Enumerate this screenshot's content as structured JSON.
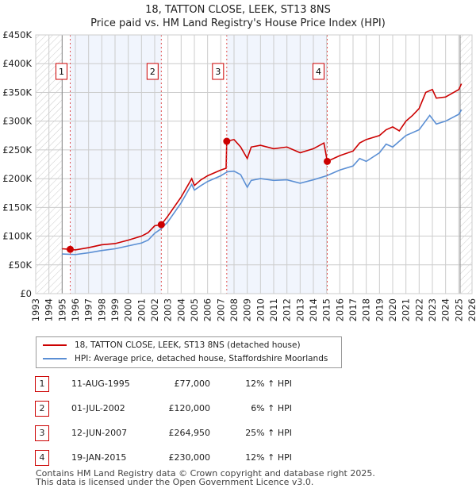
{
  "chart_data": {
    "type": "line",
    "title": "18, TATTON CLOSE, LEEK, ST13 8NS",
    "subtitle": "Price paid vs. HM Land Registry's House Price Index (HPI)",
    "xlim": [
      1993,
      2026
    ],
    "ylim": [
      0,
      450000
    ],
    "yticks": [
      "£0",
      "£50K",
      "£100K",
      "£150K",
      "£200K",
      "£250K",
      "£300K",
      "£350K",
      "£400K",
      "£450K"
    ],
    "xticks": [
      "1993",
      "1994",
      "1995",
      "1996",
      "1997",
      "1998",
      "1999",
      "2000",
      "2001",
      "2002",
      "2003",
      "2004",
      "2005",
      "2006",
      "2007",
      "2008",
      "2009",
      "2010",
      "2011",
      "2012",
      "2013",
      "2014",
      "2015",
      "2016",
      "2017",
      "2018",
      "2019",
      "2020",
      "2021",
      "2022",
      "2023",
      "2024",
      "2025",
      "2026"
    ],
    "grid": true,
    "series": [
      {
        "name": "18, TATTON CLOSE, LEEK, ST13 8NS (detached house)",
        "color": "#cc0000",
        "x": [
          1995,
          1995.6,
          1996,
          1997,
          1998,
          1999,
          2000,
          2001,
          2001.5,
          2002,
          2002.5,
          2003,
          2004,
          2004.8,
          2005,
          2005.5,
          2006,
          2007,
          2007.4,
          2007.45,
          2008,
          2008.5,
          2009,
          2009.3,
          2010,
          2011,
          2012,
          2013,
          2014,
          2014.8,
          2015.05,
          2016,
          2017,
          2017.5,
          2018,
          2019,
          2019.5,
          2020,
          2020.5,
          2021,
          2021.5,
          2022,
          2022.5,
          2023,
          2023.3,
          2024,
          2025,
          2025.2
        ],
        "y": [
          78000,
          77000,
          76000,
          80000,
          85000,
          87000,
          93000,
          100000,
          106000,
          118000,
          120000,
          135000,
          168000,
          200000,
          188000,
          198000,
          205000,
          215000,
          218000,
          265000,
          268000,
          255000,
          235000,
          255000,
          258000,
          252000,
          255000,
          245000,
          252000,
          262000,
          230000,
          240000,
          248000,
          262000,
          268000,
          275000,
          285000,
          290000,
          283000,
          300000,
          310000,
          322000,
          350000,
          355000,
          340000,
          342000,
          355000,
          365000
        ]
      },
      {
        "name": "HPI: Average price, detached house, Staffordshire Moorlands",
        "color": "#5b8fd4",
        "x": [
          1995,
          1996,
          1997,
          1998,
          1999,
          2000,
          2001,
          2001.5,
          2002,
          2002.5,
          2003,
          2004,
          2004.8,
          2005,
          2005.5,
          2006,
          2007,
          2007.5,
          2008,
          2008.5,
          2009,
          2009.3,
          2010,
          2011,
          2012,
          2013,
          2014,
          2015,
          2016,
          2017,
          2017.5,
          2018,
          2019,
          2019.5,
          2020,
          2021,
          2022,
          2022.8,
          2023.3,
          2024,
          2025,
          2025.2
        ],
        "y": [
          69000,
          68000,
          71000,
          75000,
          78000,
          83000,
          88000,
          93000,
          105000,
          113000,
          125000,
          158000,
          190000,
          180000,
          188000,
          195000,
          205000,
          212000,
          213000,
          207000,
          185000,
          197000,
          200000,
          197000,
          198000,
          192000,
          198000,
          205000,
          215000,
          222000,
          235000,
          230000,
          245000,
          260000,
          255000,
          275000,
          285000,
          310000,
          295000,
          300000,
          312000,
          320000
        ]
      }
    ],
    "sales": [
      {
        "label": "1",
        "x": 1995.61,
        "y": 77000
      },
      {
        "label": "2",
        "x": 2002.5,
        "y": 120000
      },
      {
        "label": "3",
        "x": 2007.45,
        "y": 264950
      },
      {
        "label": "4",
        "x": 2015.05,
        "y": 230000
      }
    ],
    "legend_placement": "bottom"
  },
  "legend": {
    "red": "18, TATTON CLOSE, LEEK, ST13 8NS (detached house)",
    "blue": "HPI: Average price, detached house, Staffordshire Moorlands"
  },
  "table": [
    {
      "num": "1",
      "date": "11-AUG-1995",
      "price": "£77,000",
      "hpi": "12% ↑ HPI"
    },
    {
      "num": "2",
      "date": "01-JUL-2002",
      "price": "£120,000",
      "hpi": "6% ↑ HPI"
    },
    {
      "num": "3",
      "date": "12-JUN-2007",
      "price": "£264,950",
      "hpi": "25% ↑ HPI"
    },
    {
      "num": "4",
      "date": "19-JAN-2015",
      "price": "£230,000",
      "hpi": "12% ↑ HPI"
    }
  ],
  "footer": [
    "Contains HM Land Registry data © Crown copyright and database right 2025.",
    "This data is licensed under the Open Government Licence v3.0."
  ]
}
